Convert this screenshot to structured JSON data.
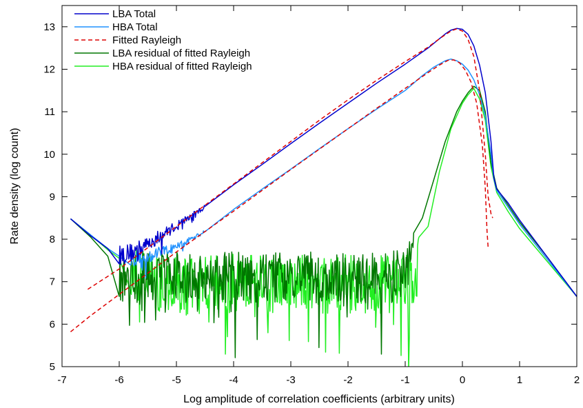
{
  "chart_data": {
    "type": "line",
    "title": "",
    "xlabel": "Log amplitude of correlation coefficients (arbitrary units)",
    "ylabel": "Rate density (log count)",
    "xlim": [
      -7,
      2
    ],
    "ylim": [
      5,
      13.5
    ],
    "x_ticks": [
      -7,
      -6,
      -5,
      -4,
      -3,
      -2,
      -1,
      0,
      1,
      2
    ],
    "y_ticks": [
      5,
      6,
      7,
      8,
      9,
      10,
      11,
      12,
      13
    ],
    "grid": false,
    "legend_position": "top-left",
    "series": [
      {
        "name": "LBA Total",
        "color": "#0000cc",
        "dash": "solid",
        "noise": {
          "x_from": -6.0,
          "x_to": -4.5,
          "amp_start": 0.25,
          "amp_end": 0.05
        },
        "points": [
          [
            -6.85,
            8.48
          ],
          [
            -6.5,
            8.08
          ],
          [
            -6.2,
            7.78
          ],
          [
            -6.0,
            7.62
          ],
          [
            -5.8,
            7.68
          ],
          [
            -5.5,
            7.88
          ],
          [
            -5.0,
            8.32
          ],
          [
            -4.5,
            8.76
          ],
          [
            -4.0,
            9.28
          ],
          [
            -3.5,
            9.76
          ],
          [
            -3.0,
            10.25
          ],
          [
            -2.5,
            10.73
          ],
          [
            -2.0,
            11.2
          ],
          [
            -1.5,
            11.67
          ],
          [
            -1.0,
            12.12
          ],
          [
            -0.6,
            12.5
          ],
          [
            -0.4,
            12.72
          ],
          [
            -0.3,
            12.83
          ],
          [
            -0.2,
            12.92
          ],
          [
            -0.1,
            12.96
          ],
          [
            0.0,
            12.94
          ],
          [
            0.1,
            12.82
          ],
          [
            0.2,
            12.55
          ],
          [
            0.3,
            12.1
          ],
          [
            0.4,
            11.45
          ],
          [
            0.5,
            10.3
          ],
          [
            0.55,
            9.45
          ],
          [
            0.6,
            9.18
          ],
          [
            0.8,
            8.85
          ],
          [
            1.0,
            8.45
          ],
          [
            1.5,
            7.55
          ],
          [
            2.0,
            6.65
          ]
        ]
      },
      {
        "name": "HBA Total",
        "color": "#1e90ff",
        "dash": "solid",
        "noise": {
          "x_from": -5.8,
          "x_to": -4.5,
          "amp_start": 0.2,
          "amp_end": 0.04
        },
        "points": [
          [
            -6.85,
            8.48
          ],
          [
            -6.5,
            8.1
          ],
          [
            -6.2,
            7.78
          ],
          [
            -6.0,
            7.6
          ],
          [
            -5.8,
            7.55
          ],
          [
            -5.5,
            7.6
          ],
          [
            -5.0,
            7.8
          ],
          [
            -4.5,
            8.2
          ],
          [
            -4.0,
            8.7
          ],
          [
            -3.5,
            9.18
          ],
          [
            -3.0,
            9.65
          ],
          [
            -2.5,
            10.13
          ],
          [
            -2.0,
            10.6
          ],
          [
            -1.5,
            11.06
          ],
          [
            -1.0,
            11.5
          ],
          [
            -0.7,
            11.85
          ],
          [
            -0.5,
            12.05
          ],
          [
            -0.3,
            12.2
          ],
          [
            -0.2,
            12.24
          ],
          [
            -0.1,
            12.2
          ],
          [
            0.0,
            12.12
          ],
          [
            0.1,
            11.98
          ],
          [
            0.2,
            11.75
          ],
          [
            0.3,
            11.4
          ],
          [
            0.4,
            10.9
          ],
          [
            0.5,
            10.0
          ],
          [
            0.55,
            9.42
          ],
          [
            0.6,
            9.15
          ],
          [
            0.8,
            8.75
          ],
          [
            1.0,
            8.35
          ],
          [
            1.5,
            7.5
          ],
          [
            2.0,
            6.65
          ]
        ]
      },
      {
        "name": "Fitted Rayleigh",
        "color": "#dd0000",
        "dash": "6,4",
        "points": [
          [
            -6.55,
            6.82
          ],
          [
            -6.0,
            7.3
          ],
          [
            -5.5,
            7.8
          ],
          [
            -5.0,
            8.3
          ],
          [
            -4.5,
            8.8
          ],
          [
            -4.0,
            9.3
          ],
          [
            -3.5,
            9.8
          ],
          [
            -3.0,
            10.3
          ],
          [
            -2.5,
            10.8
          ],
          [
            -2.0,
            11.28
          ],
          [
            -1.5,
            11.74
          ],
          [
            -1.0,
            12.18
          ],
          [
            -0.6,
            12.52
          ],
          [
            -0.4,
            12.72
          ],
          [
            -0.2,
            12.9
          ],
          [
            -0.1,
            12.95
          ],
          [
            0.0,
            12.9
          ],
          [
            0.1,
            12.7
          ],
          [
            0.2,
            12.3
          ],
          [
            0.3,
            11.5
          ],
          [
            0.4,
            10.0
          ],
          [
            0.45,
            9.0
          ],
          [
            0.5,
            8.6
          ],
          [
            0.53,
            8.5
          ]
        ]
      },
      {
        "name": "",
        "color": "#dd0000",
        "dash": "6,4",
        "points": [
          [
            -6.85,
            5.82
          ],
          [
            -6.5,
            6.2
          ],
          [
            -6.0,
            6.7
          ],
          [
            -5.5,
            7.2
          ],
          [
            -5.0,
            7.7
          ],
          [
            -4.5,
            8.18
          ],
          [
            -4.0,
            8.66
          ],
          [
            -3.5,
            9.15
          ],
          [
            -3.0,
            9.64
          ],
          [
            -2.5,
            10.12
          ],
          [
            -2.0,
            10.6
          ],
          [
            -1.5,
            11.08
          ],
          [
            -1.0,
            11.55
          ],
          [
            -0.6,
            11.92
          ],
          [
            -0.4,
            12.1
          ],
          [
            -0.25,
            12.21
          ],
          [
            -0.15,
            12.22
          ],
          [
            -0.05,
            12.15
          ],
          [
            0.05,
            11.98
          ],
          [
            0.15,
            11.7
          ],
          [
            0.25,
            11.2
          ],
          [
            0.35,
            10.2
          ],
          [
            0.4,
            9.2
          ],
          [
            0.43,
            8.2
          ],
          [
            0.45,
            7.8
          ]
        ]
      },
      {
        "name": "LBA residual of fitted Rayleigh",
        "color": "#007700",
        "dash": "solid",
        "noise": {
          "x_from": -6.0,
          "x_to": -0.85,
          "amp_start": 0.6,
          "amp_end": 0.6,
          "clip": 5.0
        },
        "points": [
          [
            -6.85,
            8.48
          ],
          [
            -6.5,
            8.05
          ],
          [
            -6.2,
            7.6
          ],
          [
            -6.0,
            7.1
          ],
          [
            -5.8,
            7.0
          ],
          [
            -5.5,
            7.1
          ],
          [
            -5.0,
            7.1
          ],
          [
            -4.0,
            7.1
          ],
          [
            -3.0,
            7.1
          ],
          [
            -2.0,
            7.1
          ],
          [
            -1.5,
            7.1
          ],
          [
            -1.0,
            7.15
          ],
          [
            -0.85,
            7.8
          ],
          [
            -0.7,
            8.5
          ],
          [
            -0.5,
            9.4
          ],
          [
            -0.3,
            10.3
          ],
          [
            -0.1,
            11.0
          ],
          [
            0.0,
            11.25
          ],
          [
            0.1,
            11.45
          ],
          [
            0.2,
            11.6
          ],
          [
            0.3,
            11.5
          ],
          [
            0.4,
            11.0
          ],
          [
            0.5,
            9.8
          ],
          [
            0.6,
            9.2
          ],
          [
            0.8,
            8.8
          ],
          [
            1.0,
            8.4
          ],
          [
            1.5,
            7.55
          ],
          [
            2.0,
            6.65
          ]
        ]
      },
      {
        "name": "HBA residual of fitted Rayleigh",
        "color": "#22ee22",
        "dash": "solid",
        "noise": {
          "x_from": -5.8,
          "x_to": -0.75,
          "amp_start": 0.7,
          "amp_end": 0.7,
          "clip": 5.0
        },
        "points": [
          [
            -6.85,
            8.48
          ],
          [
            -6.5,
            8.1
          ],
          [
            -6.2,
            7.75
          ],
          [
            -6.0,
            7.55
          ],
          [
            -5.8,
            7.3
          ],
          [
            -5.5,
            7.0
          ],
          [
            -5.0,
            6.9
          ],
          [
            -4.0,
            6.95
          ],
          [
            -3.0,
            6.95
          ],
          [
            -2.0,
            6.95
          ],
          [
            -1.5,
            6.95
          ],
          [
            -1.0,
            6.95
          ],
          [
            -0.8,
            7.2
          ],
          [
            -0.6,
            8.3
          ],
          [
            -0.4,
            9.6
          ],
          [
            -0.2,
            10.6
          ],
          [
            0.0,
            11.2
          ],
          [
            0.1,
            11.4
          ],
          [
            0.2,
            11.55
          ],
          [
            0.3,
            11.3
          ],
          [
            0.4,
            10.8
          ],
          [
            0.5,
            9.7
          ],
          [
            0.6,
            9.1
          ],
          [
            0.8,
            8.65
          ],
          [
            1.0,
            8.25
          ],
          [
            1.5,
            7.45
          ],
          [
            2.0,
            6.65
          ]
        ]
      }
    ]
  }
}
